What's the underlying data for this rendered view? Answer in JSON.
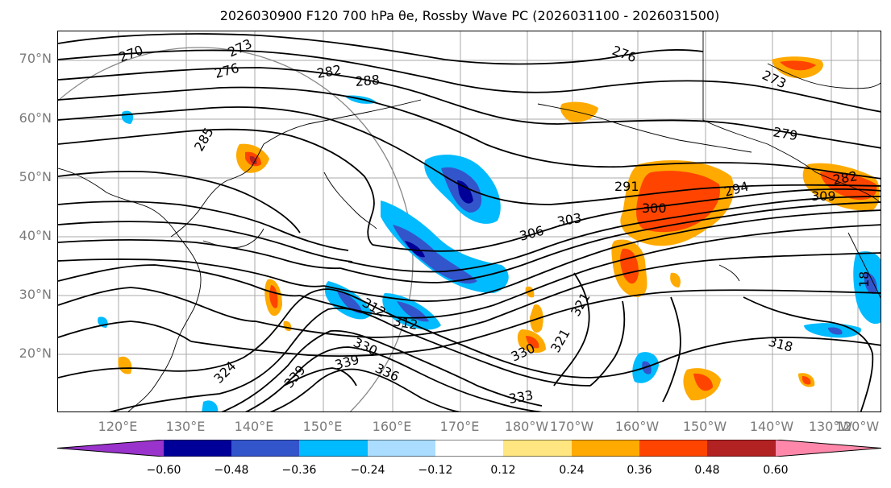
{
  "title_text": "2026030900 F120 700 hPa θe, Rossby Wave PC (2026031100 - 2026031500)",
  "map": {
    "lat_labels": [
      "70°N",
      "60°N",
      "50°N",
      "40°N",
      "30°N",
      "20°N"
    ],
    "lon_labels": [
      "120°E",
      "130°E",
      "140°E",
      "150°E",
      "160°E",
      "170°E",
      "180°W",
      "170°W",
      "160°W",
      "150°W",
      "140°W",
      "130°W",
      "120°W"
    ],
    "contour_labels": [
      "270",
      "273",
      "276",
      "276",
      "282",
      "288",
      "285",
      "276",
      "273",
      "279",
      "291",
      "294",
      "300",
      "303",
      "306",
      "309",
      "282",
      "312",
      "312",
      "318",
      "321",
      "321",
      "324",
      "330",
      "330",
      "333",
      "336",
      "339",
      "339",
      "18"
    ],
    "fill_colors": {
      "neg_060": "#9933cc",
      "neg_048": "#000099",
      "neg_036": "#3355cc",
      "neg_024": "#00bbff",
      "neg_012": "#aaddff",
      "pos_012": "#ffe680",
      "pos_024": "#ffaa00",
      "pos_036": "#ff4400",
      "pos_048": "#b22222",
      "pos_060": "#ff88aa"
    }
  },
  "colorbar": {
    "ticks": [
      "−0.60",
      "−0.48",
      "−0.36",
      "−0.24",
      "−0.12",
      "0.12",
      "0.24",
      "0.36",
      "0.48",
      "0.60"
    ],
    "colors": [
      "#9933cc",
      "#000099",
      "#3355cc",
      "#00bbff",
      "#aaddff",
      "#ffffff",
      "#ffe680",
      "#ffaa00",
      "#ff4400",
      "#b22222",
      "#ff88aa"
    ]
  }
}
